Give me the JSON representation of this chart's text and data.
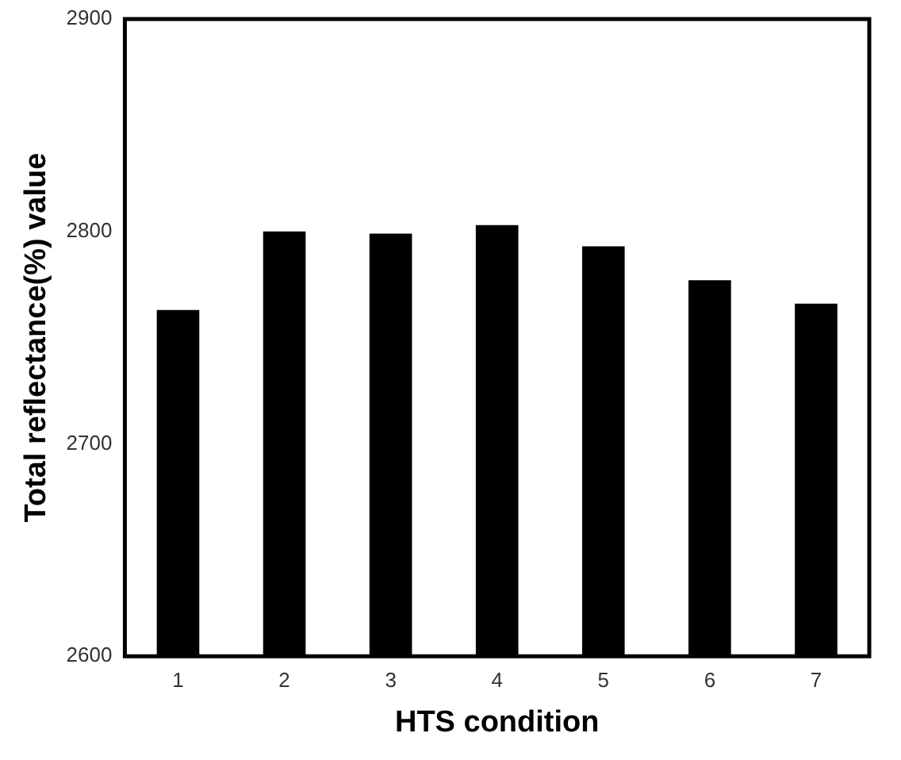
{
  "chart_data": {
    "type": "bar",
    "xlabel": "HTS condition",
    "ylabel": "Total reflectance(%) value",
    "categories": [
      "1",
      "2",
      "3",
      "4",
      "5",
      "6",
      "7"
    ],
    "values": [
      2763,
      2800,
      2799,
      2803,
      2793,
      2777,
      2766
    ],
    "color": "#000000",
    "ylim": [
      2600,
      2900
    ],
    "yticks": [
      2600,
      2700,
      2800,
      2900
    ],
    "grid": false,
    "legend": false
  }
}
